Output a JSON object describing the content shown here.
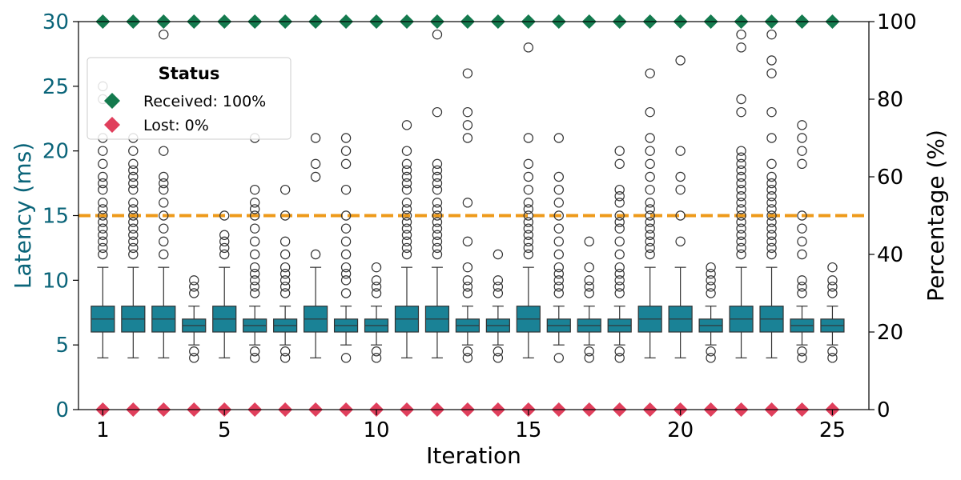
{
  "chart_data": {
    "type": "box",
    "xlabel": "Iteration",
    "ylabel_left": "Latency (ms)",
    "ylabel_right": "Percentage (%)",
    "ylim_left": [
      0,
      30
    ],
    "ylim_right": [
      0,
      100
    ],
    "xlim": [
      0.2,
      26.2
    ],
    "x_ticks": [
      1,
      5,
      10,
      15,
      20,
      25
    ],
    "y_ticks_left": [
      0,
      5,
      10,
      15,
      20,
      25,
      30
    ],
    "y_ticks_right": [
      0,
      20,
      40,
      60,
      80,
      100
    ],
    "grid": false,
    "threshold": {
      "value": 15,
      "color": "#ee9a1a",
      "style": "dashed"
    },
    "colors": {
      "box": "#1a8296",
      "left_axis": "#0a6479",
      "received": "#147a4e",
      "lost": "#e03f5c",
      "outline": "#333333"
    },
    "legend": {
      "title": "Status",
      "position": "upper-left",
      "entries": [
        {
          "label": "Received: 100%",
          "marker": "diamond",
          "color": "#147a4e"
        },
        {
          "label": "Lost: 0%",
          "marker": "diamond",
          "color": "#e03f5c"
        }
      ]
    },
    "received_pct": [
      100,
      100,
      100,
      100,
      100,
      100,
      100,
      100,
      100,
      100,
      100,
      100,
      100,
      100,
      100,
      100,
      100,
      100,
      100,
      100,
      100,
      100,
      100,
      100,
      100
    ],
    "lost_pct": [
      0,
      0,
      0,
      0,
      0,
      0,
      0,
      0,
      0,
      0,
      0,
      0,
      0,
      0,
      0,
      0,
      0,
      0,
      0,
      0,
      0,
      0,
      0,
      0,
      0
    ],
    "boxes": [
      {
        "iteration": 1,
        "q1": 6,
        "median": 7,
        "q3": 8,
        "whisker_low": 4,
        "whisker_high": 11,
        "outliers": [
          12,
          12.5,
          13,
          13.5,
          14,
          14.5,
          15,
          15.5,
          16,
          17,
          17.5,
          18,
          19,
          20,
          21,
          24,
          25
        ]
      },
      {
        "iteration": 2,
        "q1": 6,
        "median": 7,
        "q3": 8,
        "whisker_low": 4,
        "whisker_high": 11,
        "outliers": [
          12,
          12.5,
          13,
          13.5,
          14,
          14.5,
          15,
          15.5,
          16,
          17,
          17.5,
          18,
          18.5,
          19,
          20,
          21
        ]
      },
      {
        "iteration": 3,
        "q1": 6,
        "median": 7,
        "q3": 8,
        "whisker_low": 4,
        "whisker_high": 11,
        "outliers": [
          12,
          13,
          14,
          15,
          16,
          17,
          17.5,
          18,
          20,
          29
        ]
      },
      {
        "iteration": 4,
        "q1": 6,
        "median": 6.5,
        "q3": 7,
        "whisker_low": 5,
        "whisker_high": 8,
        "outliers": [
          4,
          4.5,
          9,
          9.5,
          10
        ]
      },
      {
        "iteration": 5,
        "q1": 6,
        "median": 7,
        "q3": 8,
        "whisker_low": 4,
        "whisker_high": 11,
        "outliers": [
          12,
          12.5,
          13,
          13.5,
          15
        ]
      },
      {
        "iteration": 6,
        "q1": 6,
        "median": 6.5,
        "q3": 7,
        "whisker_low": 5,
        "whisker_high": 8,
        "outliers": [
          4,
          4.5,
          9,
          9.5,
          10,
          10.5,
          11,
          12,
          13,
          14,
          15,
          15.5,
          16,
          17,
          21
        ]
      },
      {
        "iteration": 7,
        "q1": 6,
        "median": 6.5,
        "q3": 7,
        "whisker_low": 5,
        "whisker_high": 8,
        "outliers": [
          4,
          4.5,
          9,
          9.5,
          10,
          10.5,
          11,
          12,
          13,
          15,
          17
        ]
      },
      {
        "iteration": 8,
        "q1": 6,
        "median": 7,
        "q3": 8,
        "whisker_low": 4,
        "whisker_high": 11,
        "outliers": [
          12,
          18,
          19,
          21
        ]
      },
      {
        "iteration": 9,
        "q1": 6,
        "median": 6.5,
        "q3": 7,
        "whisker_low": 5,
        "whisker_high": 8,
        "outliers": [
          4,
          9,
          10,
          10.5,
          11,
          12,
          13,
          14,
          15,
          17,
          19,
          20,
          21
        ]
      },
      {
        "iteration": 10,
        "q1": 6,
        "median": 6.5,
        "q3": 7,
        "whisker_low": 5,
        "whisker_high": 8,
        "outliers": [
          4,
          4.5,
          9,
          9.5,
          10,
          11
        ]
      },
      {
        "iteration": 11,
        "q1": 6,
        "median": 7,
        "q3": 8,
        "whisker_low": 4,
        "whisker_high": 11,
        "outliers": [
          12,
          12.5,
          13,
          13.5,
          14,
          14.5,
          15,
          15.5,
          16,
          17,
          17.5,
          18,
          18.5,
          19,
          20,
          22
        ]
      },
      {
        "iteration": 12,
        "q1": 6,
        "median": 7,
        "q3": 8,
        "whisker_low": 4,
        "whisker_high": 11,
        "outliers": [
          12,
          12.5,
          13,
          13.5,
          14,
          14.5,
          15,
          15.5,
          16,
          17,
          17.5,
          18,
          18.5,
          19,
          23,
          29
        ]
      },
      {
        "iteration": 13,
        "q1": 6,
        "median": 6.5,
        "q3": 7,
        "whisker_low": 5,
        "whisker_high": 8,
        "outliers": [
          4,
          4.5,
          9,
          9.5,
          10,
          11,
          13,
          16,
          21,
          22,
          23,
          26
        ]
      },
      {
        "iteration": 14,
        "q1": 6,
        "median": 6.5,
        "q3": 7,
        "whisker_low": 5,
        "whisker_high": 8,
        "outliers": [
          4,
          4.5,
          9,
          9.5,
          10,
          12
        ]
      },
      {
        "iteration": 15,
        "q1": 6,
        "median": 7,
        "q3": 8,
        "whisker_low": 4,
        "whisker_high": 11,
        "outliers": [
          12,
          12.5,
          13,
          13.5,
          14,
          14.5,
          15,
          15.5,
          16,
          17,
          18,
          19,
          21,
          28
        ]
      },
      {
        "iteration": 16,
        "q1": 6,
        "median": 6.5,
        "q3": 7,
        "whisker_low": 5,
        "whisker_high": 8,
        "outliers": [
          4,
          9,
          9.5,
          10,
          10.5,
          11,
          12,
          13,
          14,
          15,
          16,
          17,
          18,
          21
        ]
      },
      {
        "iteration": 17,
        "q1": 6,
        "median": 6.5,
        "q3": 7,
        "whisker_low": 5,
        "whisker_high": 8,
        "outliers": [
          4,
          4.5,
          9,
          9.5,
          10,
          11,
          13
        ]
      },
      {
        "iteration": 18,
        "q1": 6,
        "median": 6.5,
        "q3": 7,
        "whisker_low": 5,
        "whisker_high": 8,
        "outliers": [
          4,
          4.5,
          9,
          9.5,
          10,
          10.5,
          11,
          12,
          13,
          14,
          14.5,
          15,
          16,
          16.5,
          17,
          19,
          20
        ]
      },
      {
        "iteration": 19,
        "q1": 6,
        "median": 7,
        "q3": 8,
        "whisker_low": 4,
        "whisker_high": 11,
        "outliers": [
          12,
          12.5,
          13,
          13.5,
          14,
          14.5,
          15,
          15.5,
          16,
          17,
          18,
          19,
          20,
          21,
          23,
          26
        ]
      },
      {
        "iteration": 20,
        "q1": 6,
        "median": 7,
        "q3": 8,
        "whisker_low": 4,
        "whisker_high": 11,
        "outliers": [
          13,
          15,
          17,
          18,
          20,
          27
        ]
      },
      {
        "iteration": 21,
        "q1": 6,
        "median": 6.5,
        "q3": 7,
        "whisker_low": 5,
        "whisker_high": 8,
        "outliers": [
          4,
          4.5,
          9,
          9.5,
          10,
          10.5,
          11
        ]
      },
      {
        "iteration": 22,
        "q1": 6,
        "median": 7,
        "q3": 8,
        "whisker_low": 4,
        "whisker_high": 11,
        "outliers": [
          12,
          12.5,
          13,
          13.5,
          14,
          14.5,
          15,
          15.5,
          16,
          16.5,
          17,
          17.5,
          18,
          18.5,
          19,
          19.5,
          20,
          23,
          24,
          28,
          29
        ]
      },
      {
        "iteration": 23,
        "q1": 6,
        "median": 7,
        "q3": 8,
        "whisker_low": 4,
        "whisker_high": 11,
        "outliers": [
          12,
          12.5,
          13,
          13.5,
          14,
          14.5,
          15,
          15.5,
          16,
          16.5,
          17,
          17.5,
          18,
          19,
          21,
          23,
          26,
          27,
          29
        ]
      },
      {
        "iteration": 24,
        "q1": 6,
        "median": 6.5,
        "q3": 7,
        "whisker_low": 5,
        "whisker_high": 8,
        "outliers": [
          4,
          4.5,
          9,
          9.5,
          10,
          12,
          13,
          14,
          15,
          19,
          20,
          21,
          22
        ]
      },
      {
        "iteration": 25,
        "q1": 6,
        "median": 6.5,
        "q3": 7,
        "whisker_low": 5,
        "whisker_high": 8,
        "outliers": [
          4,
          4.5,
          9,
          9.5,
          10,
          11
        ]
      }
    ]
  }
}
